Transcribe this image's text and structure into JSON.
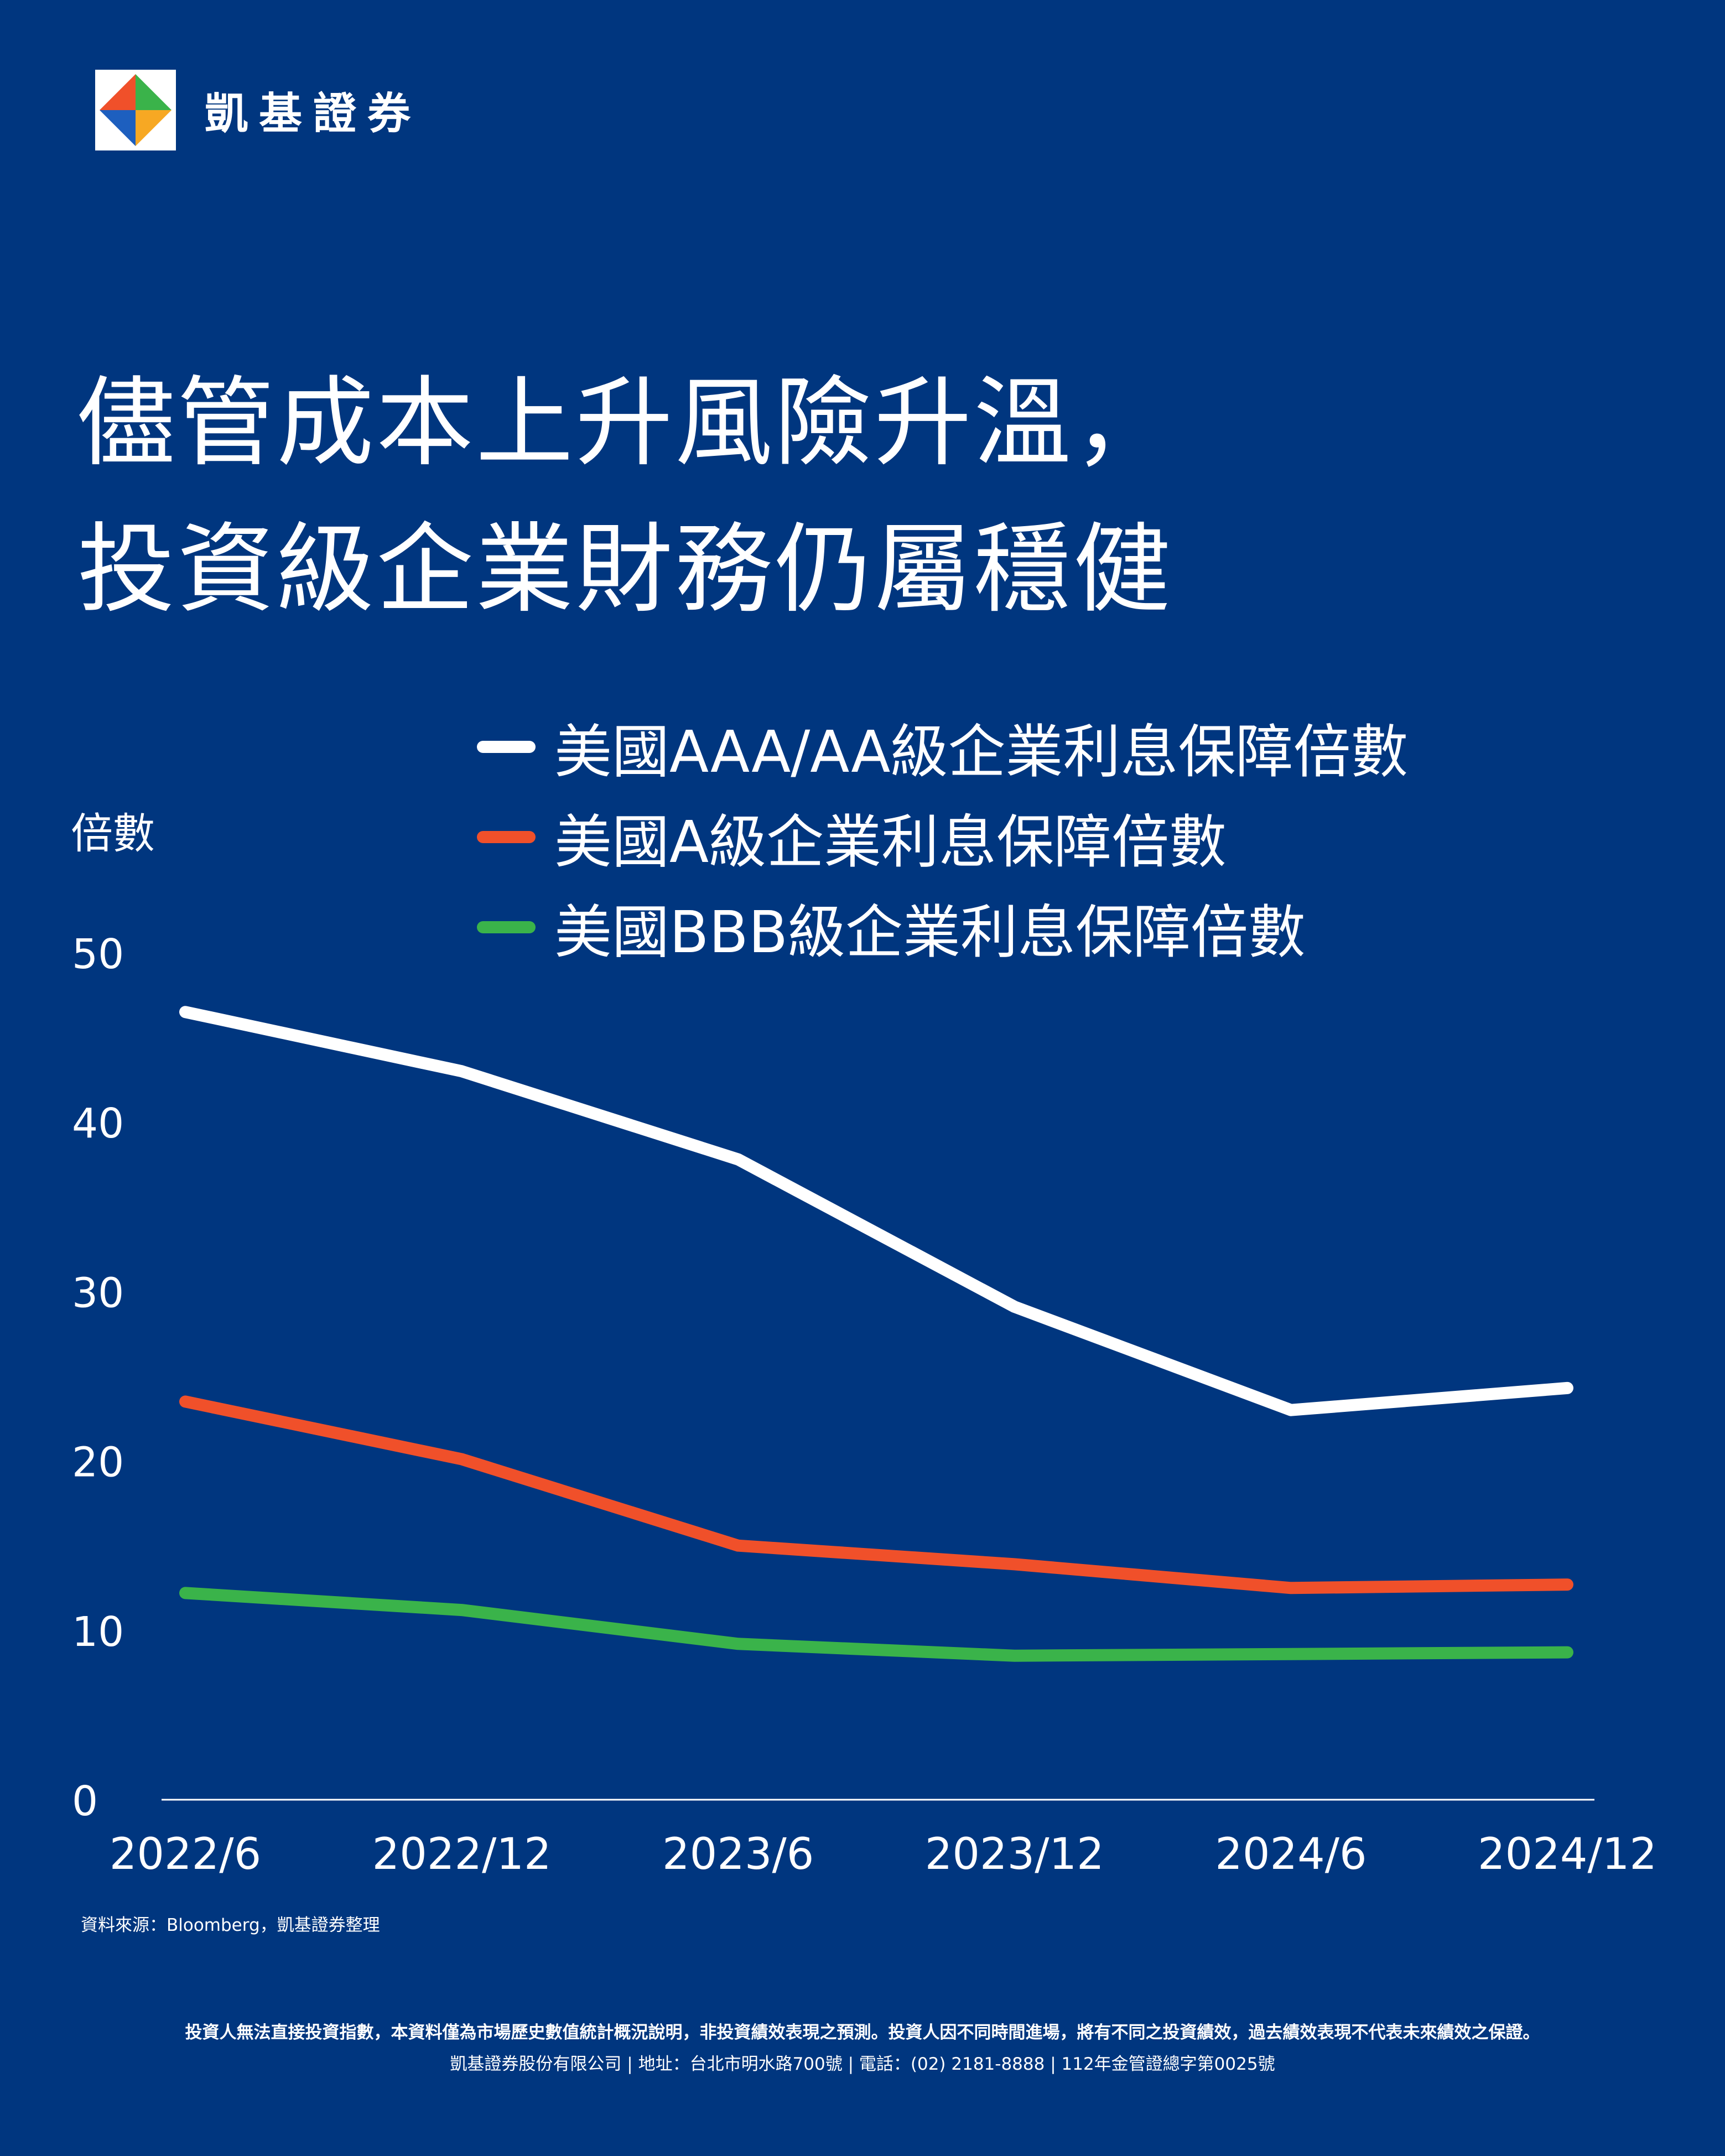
{
  "brand": {
    "name": "凱基證券",
    "logo_icon": "kgi-diamond-logo-icon"
  },
  "title": {
    "line1": "儘管成本上升風險升溫，",
    "line2": "投資級企業財務仍屬穩健"
  },
  "colors": {
    "background": "#00367f",
    "aaa": "#ffffff",
    "a": "#f0502a",
    "bbb": "#3ab34a",
    "axis": "#ffffff"
  },
  "chart_data": {
    "type": "line",
    "ylabel": "倍數",
    "xlabel": "",
    "categories": [
      "2022/6",
      "2022/12",
      "2023/6",
      "2023/12",
      "2024/6",
      "2024/12"
    ],
    "ylim": [
      0,
      50
    ],
    "yticks": [
      0,
      10,
      20,
      30,
      40,
      50
    ],
    "grid": false,
    "legend_position": "top",
    "series": [
      {
        "name": "美國AAA/AA級企業利息保障倍數",
        "values": [
          46.5,
          43.0,
          37.8,
          29.1,
          23.0,
          24.3
        ],
        "color": "#ffffff"
      },
      {
        "name": "美國A級企業利息保障倍數",
        "values": [
          23.5,
          20.1,
          15.0,
          13.9,
          12.5,
          12.7
        ],
        "color": "#f0502a"
      },
      {
        "name": "美國BBB級企業利息保障倍數",
        "values": [
          12.2,
          11.2,
          9.2,
          8.5,
          8.6,
          8.7
        ],
        "color": "#3ab34a"
      }
    ]
  },
  "source": "資料來源：Bloomberg，凱基證券整理",
  "disclaimer": {
    "line1": "投資人無法直接投資指數，本資料僅為市場歷史數值統計概況說明，非投資績效表現之預測。投資人因不同時間進場，將有不同之投資績效，過去績效表現不代表未來績效之保證。",
    "line2": "凱基證券股份有限公司 | 地址：台北市明水路700號 | 電話：(02) 2181-8888 | 112年金管證總字第0025號"
  }
}
